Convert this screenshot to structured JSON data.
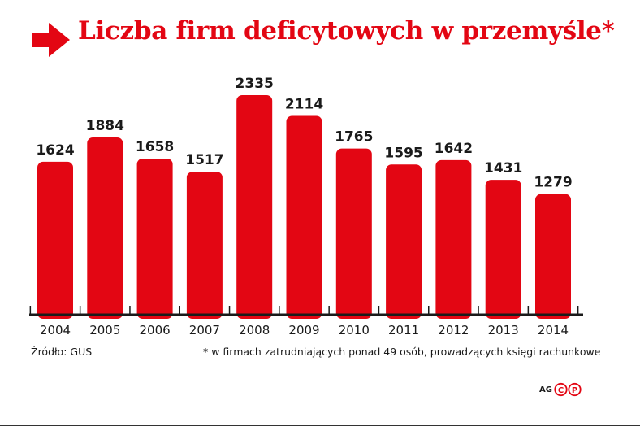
{
  "chart_data": {
    "type": "bar",
    "title": "Liczba firm deficytowych w przemyśle*",
    "categories": [
      "2004",
      "2005",
      "2006",
      "2007",
      "2008",
      "2009",
      "2010",
      "2011",
      "2012",
      "2013",
      "2014"
    ],
    "values": [
      1624,
      1884,
      1658,
      1517,
      2335,
      2114,
      1765,
      1595,
      1642,
      1431,
      1279
    ],
    "data_labels": [
      "1624",
      "1884",
      "1658",
      "1517",
      "2335",
      "2114",
      "1765",
      "1595",
      "1642",
      "1431",
      "1279"
    ],
    "xlabel": "",
    "ylabel": "",
    "ylim": [
      0,
      2335
    ],
    "grid": false,
    "legend": "none",
    "bar_color": "#e30613"
  },
  "footnotes": {
    "source": "Źródło: GUS",
    "note": "* w firmach zatrudniających ponad 49 osób, prowadzących księgi rachunkowe"
  },
  "credit": {
    "initials": "AG",
    "logo_letters": "CP",
    "logo_color": "#e30613"
  },
  "theme": {
    "accent": "#e30613",
    "text": "#1a1a1a"
  }
}
